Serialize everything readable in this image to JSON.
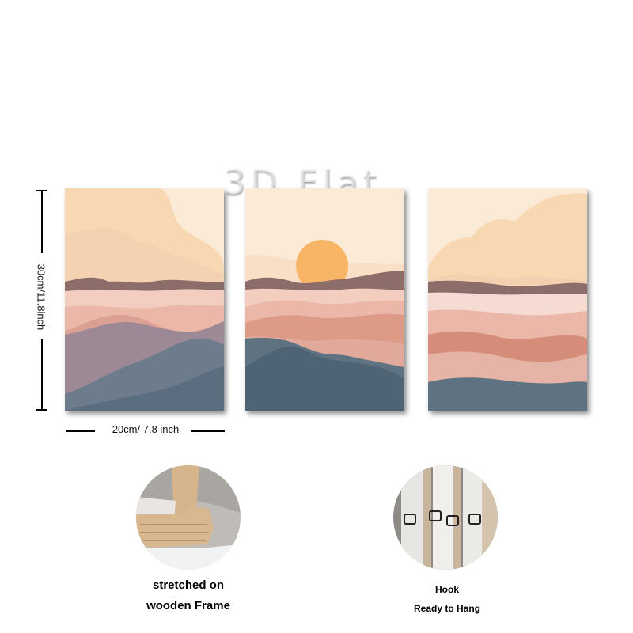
{
  "watermark": "3D Flat",
  "dimensions": {
    "height_label": "30cm/11.8inch",
    "width_label": "20cm/ 7.8 inch"
  },
  "panels": [
    {
      "name": "left-panel",
      "scene": "mountains-no-sun"
    },
    {
      "name": "center-panel",
      "scene": "mountains-with-sun"
    },
    {
      "name": "right-panel",
      "scene": "mountains-no-sun"
    }
  ],
  "details": {
    "frame": {
      "line1": "stretched on",
      "line2": "wooden Frame"
    },
    "hook": {
      "line1": "Hook",
      "line2": "Ready to Hang"
    }
  },
  "colors": {
    "sky": "#fbead6",
    "cloud": "#f8d7b3",
    "sun": "#f8b566",
    "ridge_brown": "#8c6d6a",
    "pink_light": "#f3cdc0",
    "pink_mid": "#e2a694",
    "terracotta": "#d58d79",
    "mauve": "#9d8996",
    "slate": "#5f7281",
    "teal_dark": "#4e6475"
  }
}
